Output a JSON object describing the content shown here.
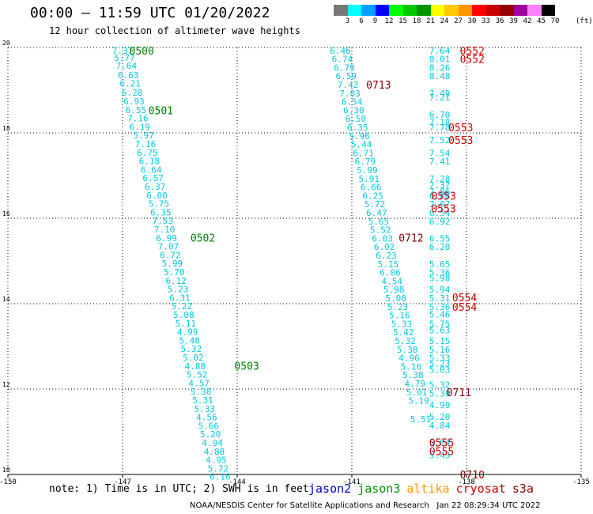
{
  "title": "00:00 – 11:59 UTC 01/20/2022",
  "subtitle": "12 hour collection of altimeter wave heights",
  "colorbar": {
    "labels": [
      "3",
      "6",
      "9",
      "12",
      "15",
      "18",
      "21",
      "24",
      "27",
      "30",
      "33",
      "36",
      "39",
      "42",
      "45",
      "70"
    ],
    "unit": "(ft)",
    "colors": [
      "#777777",
      "#00ffff",
      "#00a0ff",
      "#0000ff",
      "#00ff00",
      "#00c800",
      "#009600",
      "#ffff00",
      "#ffc800",
      "#ff9600",
      "#ff0000",
      "#c80000",
      "#960000",
      "#a000a0",
      "#ff80ff",
      "#000000"
    ]
  },
  "note": "note: 1) Time is in UTC; 2) SWH is in feet",
  "legend": [
    {
      "label": "jason2",
      "color": "#0000cc"
    },
    {
      "label": "jason3",
      "color": "#009600"
    },
    {
      "label": "altika",
      "color": "#ff9600"
    },
    {
      "label": "cryosat",
      "color": "#cc0000"
    },
    {
      "label": "s3a",
      "color": "#800000"
    }
  ],
  "footer": "NOAA/NESDIS Center for Satellite Applications and Research   Jan 22 08:29:34 UTC 2022",
  "chart_data": {
    "type": "scatter",
    "xlim": [
      -150,
      -135
    ],
    "ylim": [
      10,
      20
    ],
    "x_ticks": [
      "-150",
      "-147",
      "-144",
      "-141",
      "-138",
      "-135"
    ],
    "y_ticks": [
      "10",
      "12",
      "14",
      "16",
      "18",
      "20"
    ],
    "grid": true,
    "wave_color": "#00c8e0",
    "tracks": [
      {
        "name": "track1",
        "color": "#00c8e0",
        "points": [
          {
            "x": -147.0,
            "y": 19.93,
            "label": "7.37"
          },
          {
            "x": -146.95,
            "y": 19.76,
            "label": "5.77"
          },
          {
            "x": -146.9,
            "y": 19.57,
            "label": "7.64"
          },
          {
            "x": -146.85,
            "y": 19.35,
            "label": "6.63"
          },
          {
            "x": -146.8,
            "y": 19.16,
            "label": "6.21"
          },
          {
            "x": -146.75,
            "y": 18.94,
            "label": "6.28"
          },
          {
            "x": -146.7,
            "y": 18.74,
            "label": "6.93"
          },
          {
            "x": -146.65,
            "y": 18.54,
            "label": "6.55"
          },
          {
            "x": -146.6,
            "y": 18.34,
            "label": "7.16"
          },
          {
            "x": -146.55,
            "y": 18.14,
            "label": "6.19"
          },
          {
            "x": -146.45,
            "y": 17.94,
            "label": "5.97"
          },
          {
            "x": -146.4,
            "y": 17.74,
            "label": "7.16"
          },
          {
            "x": -146.35,
            "y": 17.54,
            "label": "6.75"
          },
          {
            "x": -146.3,
            "y": 17.34,
            "label": "6.18"
          },
          {
            "x": -146.25,
            "y": 17.14,
            "label": "6.64"
          },
          {
            "x": -146.2,
            "y": 16.94,
            "label": "6.57"
          },
          {
            "x": -146.15,
            "y": 16.74,
            "label": "6.37"
          },
          {
            "x": -146.1,
            "y": 16.54,
            "label": "6.00"
          },
          {
            "x": -146.05,
            "y": 16.34,
            "label": "5.75"
          },
          {
            "x": -146.0,
            "y": 16.14,
            "label": "6.35"
          },
          {
            "x": -145.95,
            "y": 15.94,
            "label": "7.53"
          },
          {
            "x": -145.9,
            "y": 15.74,
            "label": "7.10"
          },
          {
            "x": -145.85,
            "y": 15.54,
            "label": "6.99"
          },
          {
            "x": -145.8,
            "y": 15.34,
            "label": "7.07"
          },
          {
            "x": -145.75,
            "y": 15.14,
            "label": "6.72"
          },
          {
            "x": -145.7,
            "y": 14.94,
            "label": "5.99"
          },
          {
            "x": -145.65,
            "y": 14.74,
            "label": "5.70"
          },
          {
            "x": -145.6,
            "y": 14.54,
            "label": "6.12"
          },
          {
            "x": -145.55,
            "y": 14.34,
            "label": "5.23"
          },
          {
            "x": -145.5,
            "y": 14.14,
            "label": "6.31"
          },
          {
            "x": -145.45,
            "y": 13.94,
            "label": "5.22"
          },
          {
            "x": -145.4,
            "y": 13.74,
            "label": "5.08"
          },
          {
            "x": -145.35,
            "y": 13.54,
            "label": "5.11"
          },
          {
            "x": -145.3,
            "y": 13.34,
            "label": "4.99"
          },
          {
            "x": -145.25,
            "y": 13.14,
            "label": "5.48"
          },
          {
            "x": -145.2,
            "y": 12.94,
            "label": "5.32"
          },
          {
            "x": -145.15,
            "y": 12.74,
            "label": "5.02"
          },
          {
            "x": -145.1,
            "y": 12.54,
            "label": "4.88"
          },
          {
            "x": -145.05,
            "y": 12.34,
            "label": "5.52"
          },
          {
            "x": -145.0,
            "y": 12.14,
            "label": "4.57"
          },
          {
            "x": -144.95,
            "y": 11.94,
            "label": "5.38"
          },
          {
            "x": -144.9,
            "y": 11.74,
            "label": "5.31"
          },
          {
            "x": -144.85,
            "y": 11.54,
            "label": "5.33"
          },
          {
            "x": -144.8,
            "y": 11.34,
            "label": "4.56"
          },
          {
            "x": -144.75,
            "y": 11.14,
            "label": "5.66"
          },
          {
            "x": -144.7,
            "y": 10.94,
            "label": "5.20"
          },
          {
            "x": -144.65,
            "y": 10.74,
            "label": "4.94"
          },
          {
            "x": -144.6,
            "y": 10.54,
            "label": "4.88"
          },
          {
            "x": -144.55,
            "y": 10.34,
            "label": "4.95"
          },
          {
            "x": -144.5,
            "y": 10.14,
            "label": "5.72"
          },
          {
            "x": -144.45,
            "y": 9.95,
            "label": "6.16"
          }
        ]
      },
      {
        "name": "track2",
        "color": "#00c8e0",
        "points": [
          {
            "x": -141.3,
            "y": 19.93,
            "label": "6.46"
          },
          {
            "x": -141.25,
            "y": 19.73,
            "label": "6.74"
          },
          {
            "x": -141.2,
            "y": 19.53,
            "label": "6.79"
          },
          {
            "x": -141.15,
            "y": 19.33,
            "label": "6.59"
          },
          {
            "x": -141.1,
            "y": 19.13,
            "label": "7.42"
          },
          {
            "x": -141.05,
            "y": 18.93,
            "label": "7.03"
          },
          {
            "x": -141.0,
            "y": 18.73,
            "label": "6.54"
          },
          {
            "x": -140.95,
            "y": 18.53,
            "label": "6.30"
          },
          {
            "x": -140.9,
            "y": 18.33,
            "label": "6.50"
          },
          {
            "x": -140.85,
            "y": 18.13,
            "label": "6.35"
          },
          {
            "x": -140.8,
            "y": 17.93,
            "label": "5.96"
          },
          {
            "x": -140.75,
            "y": 17.73,
            "label": "5.44"
          },
          {
            "x": -140.7,
            "y": 17.53,
            "label": "6.71"
          },
          {
            "x": -140.65,
            "y": 17.33,
            "label": "6.79"
          },
          {
            "x": -140.6,
            "y": 17.13,
            "label": "5.99"
          },
          {
            "x": -140.55,
            "y": 16.93,
            "label": "5.91"
          },
          {
            "x": -140.5,
            "y": 16.73,
            "label": "6.66"
          },
          {
            "x": -140.45,
            "y": 16.53,
            "label": "6.25"
          },
          {
            "x": -140.4,
            "y": 16.33,
            "label": "5.72"
          },
          {
            "x": -140.35,
            "y": 16.13,
            "label": "6.47"
          },
          {
            "x": -140.3,
            "y": 15.93,
            "label": "5.65"
          },
          {
            "x": -140.25,
            "y": 15.73,
            "label": "5.52"
          },
          {
            "x": -140.2,
            "y": 15.53,
            "label": "6.03"
          },
          {
            "x": -140.15,
            "y": 15.33,
            "label": "6.02"
          },
          {
            "x": -140.1,
            "y": 15.13,
            "label": "6.23"
          },
          {
            "x": -140.05,
            "y": 14.93,
            "label": "5.15"
          },
          {
            "x": -140.0,
            "y": 14.73,
            "label": "6.06"
          },
          {
            "x": -139.95,
            "y": 14.53,
            "label": "4.54"
          },
          {
            "x": -139.9,
            "y": 14.33,
            "label": "5.98"
          },
          {
            "x": -139.85,
            "y": 14.13,
            "label": "5.08"
          },
          {
            "x": -139.8,
            "y": 13.93,
            "label": "5.23"
          },
          {
            "x": -139.75,
            "y": 13.73,
            "label": "5.16"
          },
          {
            "x": -139.7,
            "y": 13.53,
            "label": "5.33"
          },
          {
            "x": -139.65,
            "y": 13.33,
            "label": "5.42"
          },
          {
            "x": -139.6,
            "y": 13.13,
            "label": "5.32"
          },
          {
            "x": -139.55,
            "y": 12.93,
            "label": "5.38"
          },
          {
            "x": -139.5,
            "y": 12.73,
            "label": "4.96"
          },
          {
            "x": -139.45,
            "y": 12.53,
            "label": "5.16"
          },
          {
            "x": -139.4,
            "y": 12.33,
            "label": "5.38"
          },
          {
            "x": -139.35,
            "y": 12.13,
            "label": "4.79"
          },
          {
            "x": -139.3,
            "y": 11.93,
            "label": "5.01"
          },
          {
            "x": -139.25,
            "y": 11.73,
            "label": "5.19"
          },
          {
            "x": -139.2,
            "y": 11.3,
            "label": "5.51"
          }
        ]
      },
      {
        "name": "track3",
        "color": "#00c8e0",
        "points": [
          {
            "x": -138.7,
            "y": 19.93,
            "label": "7.64"
          },
          {
            "x": -138.7,
            "y": 19.73,
            "label": "8.01"
          },
          {
            "x": -138.7,
            "y": 19.53,
            "label": "8.26"
          },
          {
            "x": -138.7,
            "y": 19.33,
            "label": "8.48"
          },
          {
            "x": -138.7,
            "y": 18.93,
            "label": "7.49"
          },
          {
            "x": -138.7,
            "y": 18.83,
            "label": "7.21"
          },
          {
            "x": -138.7,
            "y": 18.43,
            "label": "6.70"
          },
          {
            "x": -138.7,
            "y": 18.25,
            "label": "7.18"
          },
          {
            "x": -138.7,
            "y": 18.13,
            "label": "7.78"
          },
          {
            "x": -138.7,
            "y": 17.83,
            "label": "7.52"
          },
          {
            "x": -138.7,
            "y": 17.53,
            "label": "7.54"
          },
          {
            "x": -138.7,
            "y": 17.33,
            "label": "7.41"
          },
          {
            "x": -138.7,
            "y": 16.93,
            "label": "7.28"
          },
          {
            "x": -138.7,
            "y": 16.78,
            "label": "7.37"
          },
          {
            "x": -138.7,
            "y": 16.63,
            "label": "7.86"
          },
          {
            "x": -138.7,
            "y": 16.53,
            "label": "6.88"
          },
          {
            "x": -138.7,
            "y": 16.33,
            "label": "7.07"
          },
          {
            "x": -138.7,
            "y": 16.13,
            "label": "6.54"
          },
          {
            "x": -138.7,
            "y": 15.93,
            "label": "6.92"
          },
          {
            "x": -138.7,
            "y": 15.53,
            "label": "6.55"
          },
          {
            "x": -138.7,
            "y": 15.33,
            "label": "6.20"
          },
          {
            "x": -138.7,
            "y": 14.93,
            "label": "5.65"
          },
          {
            "x": -138.7,
            "y": 14.73,
            "label": "5.36"
          },
          {
            "x": -138.7,
            "y": 14.6,
            "label": "5.98"
          },
          {
            "x": -138.7,
            "y": 14.33,
            "label": "5.94"
          },
          {
            "x": -138.7,
            "y": 14.13,
            "label": "5.31"
          },
          {
            "x": -138.7,
            "y": 13.93,
            "label": "5.36"
          },
          {
            "x": -138.7,
            "y": 13.75,
            "label": "5.46"
          },
          {
            "x": -138.7,
            "y": 13.53,
            "label": "5.75"
          },
          {
            "x": -138.7,
            "y": 13.38,
            "label": "5.63"
          },
          {
            "x": -138.7,
            "y": 13.13,
            "label": "5.15"
          },
          {
            "x": -138.7,
            "y": 12.93,
            "label": "5.16"
          },
          {
            "x": -138.7,
            "y": 12.73,
            "label": "5.33"
          },
          {
            "x": -138.7,
            "y": 12.6,
            "label": "5.23"
          },
          {
            "x": -138.7,
            "y": 12.45,
            "label": "5.03"
          },
          {
            "x": -138.7,
            "y": 12.1,
            "label": "5.32"
          },
          {
            "x": -138.7,
            "y": 11.9,
            "label": "5.39"
          },
          {
            "x": -138.7,
            "y": 11.63,
            "label": "4.99"
          },
          {
            "x": -138.7,
            "y": 11.35,
            "label": "5.20"
          },
          {
            "x": -138.7,
            "y": 11.15,
            "label": "4.84"
          },
          {
            "x": -138.7,
            "y": 10.75,
            "label": "5.04"
          },
          {
            "x": -138.7,
            "y": 10.45,
            "label": "5.43"
          }
        ]
      }
    ],
    "pass_labels": [
      {
        "x": -146.5,
        "y": 19.93,
        "label": "0500",
        "color": "#008000"
      },
      {
        "x": -146.0,
        "y": 18.53,
        "label": "0501",
        "color": "#008000"
      },
      {
        "x": -144.9,
        "y": 15.55,
        "label": "0502",
        "color": "#008000"
      },
      {
        "x": -143.75,
        "y": 12.55,
        "label": "0503",
        "color": "#008000"
      },
      {
        "x": -140.3,
        "y": 19.13,
        "label": "0713",
        "color": "#800000"
      },
      {
        "x": -139.45,
        "y": 15.55,
        "label": "0712",
        "color": "#800000"
      },
      {
        "x": -137.85,
        "y": 19.93,
        "label": "0552",
        "color": "#cc0000"
      },
      {
        "x": -137.85,
        "y": 19.73,
        "label": "0552",
        "color": "#cc0000"
      },
      {
        "x": -138.15,
        "y": 18.13,
        "label": "0553",
        "color": "#cc0000"
      },
      {
        "x": -138.15,
        "y": 17.83,
        "label": "0553",
        "color": "#cc0000"
      },
      {
        "x": -138.6,
        "y": 16.53,
        "label": "0553",
        "color": "#cc0000"
      },
      {
        "x": -138.6,
        "y": 16.23,
        "label": "0553",
        "color": "#cc0000"
      },
      {
        "x": -138.05,
        "y": 14.15,
        "label": "0554",
        "color": "#cc0000"
      },
      {
        "x": -138.05,
        "y": 13.93,
        "label": "0554",
        "color": "#cc0000"
      },
      {
        "x": -138.2,
        "y": 11.93,
        "label": "0711",
        "color": "#800000"
      },
      {
        "x": -138.65,
        "y": 10.75,
        "label": "0555",
        "color": "#cc0000"
      },
      {
        "x": -138.65,
        "y": 10.55,
        "label": "0555",
        "color": "#cc0000"
      },
      {
        "x": -137.85,
        "y": 10.0,
        "label": "0710",
        "color": "#800000"
      }
    ]
  }
}
